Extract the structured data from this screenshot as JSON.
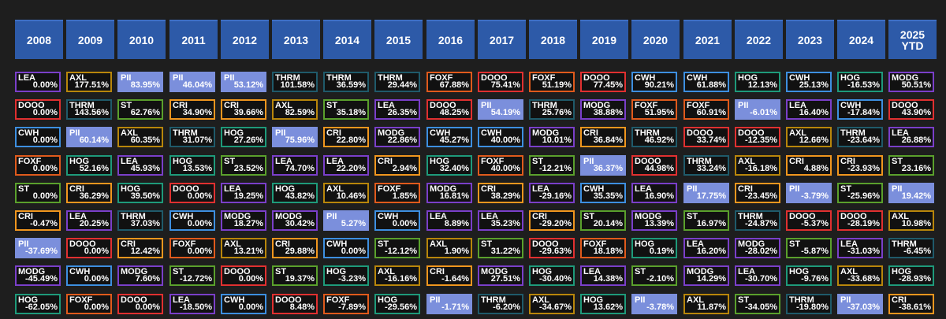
{
  "colors": {
    "LEA": "#7a3fc9",
    "AXL": "#b8860b",
    "PII": "#7b8fdc",
    "THRM": "#1f5a6a",
    "FOXF": "#e05a1c",
    "DOOO": "#e03030",
    "CWH": "#3d8fe0",
    "HOG": "#1e9a7a",
    "MODG": "#7a3fc9",
    "ST": "#5aa02c",
    "CRI": "#f0961e"
  },
  "chart_data": {
    "type": "table",
    "columns": [
      {
        "label": "2008",
        "cells": [
          {
            "ticker": "LEA",
            "ret": "0.00%"
          },
          {
            "ticker": "DOOO",
            "ret": "0.00%"
          },
          {
            "ticker": "CWH",
            "ret": "0.00%"
          },
          {
            "ticker": "FOXF",
            "ret": "0.00%"
          },
          {
            "ticker": "ST",
            "ret": "0.00%"
          },
          {
            "ticker": "CRI",
            "ret": "-0.47%"
          },
          {
            "ticker": "PII",
            "ret": "-37.69%"
          },
          {
            "ticker": "MODG",
            "ret": "-45.49%"
          },
          {
            "ticker": "HOG",
            "ret": "-62.05%"
          }
        ]
      },
      {
        "label": "2009",
        "cells": [
          {
            "ticker": "AXL",
            "ret": "177.51%"
          },
          {
            "ticker": "THRM",
            "ret": "143.56%"
          },
          {
            "ticker": "PII",
            "ret": "60.14%"
          },
          {
            "ticker": "HOG",
            "ret": "52.16%"
          },
          {
            "ticker": "CRI",
            "ret": "36.29%"
          },
          {
            "ticker": "LEA",
            "ret": "20.25%"
          },
          {
            "ticker": "DOOO",
            "ret": "0.00%"
          },
          {
            "ticker": "CWH",
            "ret": "0.00%"
          },
          {
            "ticker": "FOXF",
            "ret": "0.00%"
          }
        ]
      },
      {
        "label": "2010",
        "cells": [
          {
            "ticker": "PII",
            "ret": "83.95%"
          },
          {
            "ticker": "ST",
            "ret": "62.76%"
          },
          {
            "ticker": "AXL",
            "ret": "60.35%"
          },
          {
            "ticker": "LEA",
            "ret": "45.93%"
          },
          {
            "ticker": "HOG",
            "ret": "39.50%"
          },
          {
            "ticker": "THRM",
            "ret": "37.03%"
          },
          {
            "ticker": "CRI",
            "ret": "12.42%"
          },
          {
            "ticker": "MODG",
            "ret": "7.60%"
          },
          {
            "ticker": "DOOO",
            "ret": "0.00%"
          }
        ]
      },
      {
        "label": "2011",
        "cells": [
          {
            "ticker": "PII",
            "ret": "46.04%"
          },
          {
            "ticker": "CRI",
            "ret": "34.90%"
          },
          {
            "ticker": "THRM",
            "ret": "31.07%"
          },
          {
            "ticker": "HOG",
            "ret": "13.53%"
          },
          {
            "ticker": "DOOO",
            "ret": "0.00%"
          },
          {
            "ticker": "CWH",
            "ret": "0.00%"
          },
          {
            "ticker": "FOXF",
            "ret": "0.00%"
          },
          {
            "ticker": "ST",
            "ret": "-12.72%"
          },
          {
            "ticker": "LEA",
            "ret": "-18.50%"
          }
        ]
      },
      {
        "label": "2012",
        "cells": [
          {
            "ticker": "PII",
            "ret": "53.12%"
          },
          {
            "ticker": "CRI",
            "ret": "39.66%"
          },
          {
            "ticker": "HOG",
            "ret": "27.26%"
          },
          {
            "ticker": "ST",
            "ret": "23.52%"
          },
          {
            "ticker": "LEA",
            "ret": "19.25%"
          },
          {
            "ticker": "MODG",
            "ret": "18.27%"
          },
          {
            "ticker": "AXL",
            "ret": "13.21%"
          },
          {
            "ticker": "DOOO",
            "ret": "0.00%"
          },
          {
            "ticker": "CWH",
            "ret": "0.00%"
          }
        ]
      },
      {
        "label": "2013",
        "cells": [
          {
            "ticker": "THRM",
            "ret": "101.58%"
          },
          {
            "ticker": "AXL",
            "ret": "82.59%"
          },
          {
            "ticker": "PII",
            "ret": "75.96%"
          },
          {
            "ticker": "LEA",
            "ret": "74.70%"
          },
          {
            "ticker": "HOG",
            "ret": "43.82%"
          },
          {
            "ticker": "MODG",
            "ret": "30.42%"
          },
          {
            "ticker": "CRI",
            "ret": "29.88%"
          },
          {
            "ticker": "ST",
            "ret": "19.37%"
          },
          {
            "ticker": "DOOO",
            "ret": "8.48%"
          }
        ]
      },
      {
        "label": "2014",
        "cells": [
          {
            "ticker": "THRM",
            "ret": "36.59%"
          },
          {
            "ticker": "ST",
            "ret": "35.18%"
          },
          {
            "ticker": "CRI",
            "ret": "22.80%"
          },
          {
            "ticker": "LEA",
            "ret": "22.20%"
          },
          {
            "ticker": "AXL",
            "ret": "10.46%"
          },
          {
            "ticker": "PII",
            "ret": "5.27%"
          },
          {
            "ticker": "CWH",
            "ret": "0.00%"
          },
          {
            "ticker": "HOG",
            "ret": "-3.23%"
          },
          {
            "ticker": "FOXF",
            "ret": "-7.89%"
          }
        ]
      },
      {
        "label": "2015",
        "cells": [
          {
            "ticker": "THRM",
            "ret": "29.44%"
          },
          {
            "ticker": "LEA",
            "ret": "26.35%"
          },
          {
            "ticker": "MODG",
            "ret": "22.86%"
          },
          {
            "ticker": "CRI",
            "ret": "2.94%"
          },
          {
            "ticker": "FOXF",
            "ret": "1.85%"
          },
          {
            "ticker": "CWH",
            "ret": "0.00%"
          },
          {
            "ticker": "ST",
            "ret": "-12.12%"
          },
          {
            "ticker": "AXL",
            "ret": "-16.16%"
          },
          {
            "ticker": "HOG",
            "ret": "-29.56%"
          }
        ]
      },
      {
        "label": "2016",
        "cells": [
          {
            "ticker": "FOXF",
            "ret": "67.88%"
          },
          {
            "ticker": "DOOO",
            "ret": "48.25%"
          },
          {
            "ticker": "CWH",
            "ret": "45.27%"
          },
          {
            "ticker": "HOG",
            "ret": "32.40%"
          },
          {
            "ticker": "MODG",
            "ret": "16.81%"
          },
          {
            "ticker": "LEA",
            "ret": "8.89%"
          },
          {
            "ticker": "AXL",
            "ret": "1.90%"
          },
          {
            "ticker": "CRI",
            "ret": "-1.64%"
          },
          {
            "ticker": "PII",
            "ret": "-1.71%"
          }
        ]
      },
      {
        "label": "2017",
        "cells": [
          {
            "ticker": "DOOO",
            "ret": "75.41%"
          },
          {
            "ticker": "PII",
            "ret": "54.19%"
          },
          {
            "ticker": "CWH",
            "ret": "40.00%"
          },
          {
            "ticker": "FOXF",
            "ret": "40.00%"
          },
          {
            "ticker": "CRI",
            "ret": "38.29%"
          },
          {
            "ticker": "LEA",
            "ret": "35.23%"
          },
          {
            "ticker": "ST",
            "ret": "31.22%"
          },
          {
            "ticker": "MODG",
            "ret": "27.51%"
          },
          {
            "ticker": "THRM",
            "ret": "-6.20%"
          }
        ]
      },
      {
        "label": "2018",
        "cells": [
          {
            "ticker": "FOXF",
            "ret": "51.19%"
          },
          {
            "ticker": "THRM",
            "ret": "25.76%"
          },
          {
            "ticker": "MODG",
            "ret": "10.01%"
          },
          {
            "ticker": "ST",
            "ret": "-12.21%"
          },
          {
            "ticker": "LEA",
            "ret": "-29.16%"
          },
          {
            "ticker": "CRI",
            "ret": "-29.20%"
          },
          {
            "ticker": "DOOO",
            "ret": "-29.63%"
          },
          {
            "ticker": "HOG",
            "ret": "-30.40%"
          },
          {
            "ticker": "AXL",
            "ret": "-34.67%"
          }
        ]
      },
      {
        "label": "2019",
        "cells": [
          {
            "ticker": "DOOO",
            "ret": "77.45%"
          },
          {
            "ticker": "MODG",
            "ret": "38.88%"
          },
          {
            "ticker": "CRI",
            "ret": "36.84%"
          },
          {
            "ticker": "PII",
            "ret": "36.37%"
          },
          {
            "ticker": "CWH",
            "ret": "35.35%"
          },
          {
            "ticker": "ST",
            "ret": "20.14%"
          },
          {
            "ticker": "FOXF",
            "ret": "18.18%"
          },
          {
            "ticker": "LEA",
            "ret": "14.38%"
          },
          {
            "ticker": "HOG",
            "ret": "13.62%"
          }
        ]
      },
      {
        "label": "2020",
        "cells": [
          {
            "ticker": "CWH",
            "ret": "90.21%"
          },
          {
            "ticker": "FOXF",
            "ret": "51.95%"
          },
          {
            "ticker": "THRM",
            "ret": "46.92%"
          },
          {
            "ticker": "DOOO",
            "ret": "44.98%"
          },
          {
            "ticker": "LEA",
            "ret": "16.90%"
          },
          {
            "ticker": "MODG",
            "ret": "13.39%"
          },
          {
            "ticker": "HOG",
            "ret": "0.19%"
          },
          {
            "ticker": "ST",
            "ret": "-2.10%"
          },
          {
            "ticker": "PII",
            "ret": "-3.78%"
          }
        ]
      },
      {
        "label": "2021",
        "cells": [
          {
            "ticker": "CWH",
            "ret": "61.88%"
          },
          {
            "ticker": "FOXF",
            "ret": "60.91%"
          },
          {
            "ticker": "DOOO",
            "ret": "33.74%"
          },
          {
            "ticker": "THRM",
            "ret": "33.24%"
          },
          {
            "ticker": "PII",
            "ret": "17.75%"
          },
          {
            "ticker": "ST",
            "ret": "16.97%"
          },
          {
            "ticker": "LEA",
            "ret": "16.20%"
          },
          {
            "ticker": "MODG",
            "ret": "14.29%"
          },
          {
            "ticker": "AXL",
            "ret": "11.87%"
          }
        ]
      },
      {
        "label": "2022",
        "cells": [
          {
            "ticker": "HOG",
            "ret": "12.13%"
          },
          {
            "ticker": "PII",
            "ret": "-6.01%"
          },
          {
            "ticker": "DOOO",
            "ret": "-12.35%"
          },
          {
            "ticker": "AXL",
            "ret": "-16.18%"
          },
          {
            "ticker": "CRI",
            "ret": "-23.45%"
          },
          {
            "ticker": "THRM",
            "ret": "-24.87%"
          },
          {
            "ticker": "MODG",
            "ret": "-28.02%"
          },
          {
            "ticker": "LEA",
            "ret": "-30.70%"
          },
          {
            "ticker": "ST",
            "ret": "-34.05%"
          }
        ]
      },
      {
        "label": "2023",
        "cells": [
          {
            "ticker": "CWH",
            "ret": "25.13%"
          },
          {
            "ticker": "LEA",
            "ret": "16.40%"
          },
          {
            "ticker": "AXL",
            "ret": "12.66%"
          },
          {
            "ticker": "CRI",
            "ret": "4.88%"
          },
          {
            "ticker": "PII",
            "ret": "-3.79%"
          },
          {
            "ticker": "DOOO",
            "ret": "-5.37%"
          },
          {
            "ticker": "ST",
            "ret": "-5.87%"
          },
          {
            "ticker": "HOG",
            "ret": "-9.76%"
          },
          {
            "ticker": "THRM",
            "ret": "-19.80%"
          }
        ]
      },
      {
        "label": "2024",
        "cells": [
          {
            "ticker": "HOG",
            "ret": "-16.53%"
          },
          {
            "ticker": "CWH",
            "ret": "-17.84%"
          },
          {
            "ticker": "THRM",
            "ret": "-23.64%"
          },
          {
            "ticker": "CRI",
            "ret": "-23.93%"
          },
          {
            "ticker": "ST",
            "ret": "-25.96%"
          },
          {
            "ticker": "DOOO",
            "ret": "-28.19%"
          },
          {
            "ticker": "LEA",
            "ret": "-31.03%"
          },
          {
            "ticker": "AXL",
            "ret": "-33.68%"
          },
          {
            "ticker": "PII",
            "ret": "-37.03%"
          }
        ]
      },
      {
        "label": "2025\nYTD",
        "cells": [
          {
            "ticker": "MODG",
            "ret": "50.51%"
          },
          {
            "ticker": "DOOO",
            "ret": "43.90%"
          },
          {
            "ticker": "LEA",
            "ret": "26.88%"
          },
          {
            "ticker": "ST",
            "ret": "23.16%"
          },
          {
            "ticker": "PII",
            "ret": "19.42%"
          },
          {
            "ticker": "AXL",
            "ret": "10.98%"
          },
          {
            "ticker": "THRM",
            "ret": "-6.45%"
          },
          {
            "ticker": "HOG",
            "ret": "-28.93%"
          },
          {
            "ticker": "CRI",
            "ret": "-38.61%"
          }
        ]
      }
    ]
  }
}
